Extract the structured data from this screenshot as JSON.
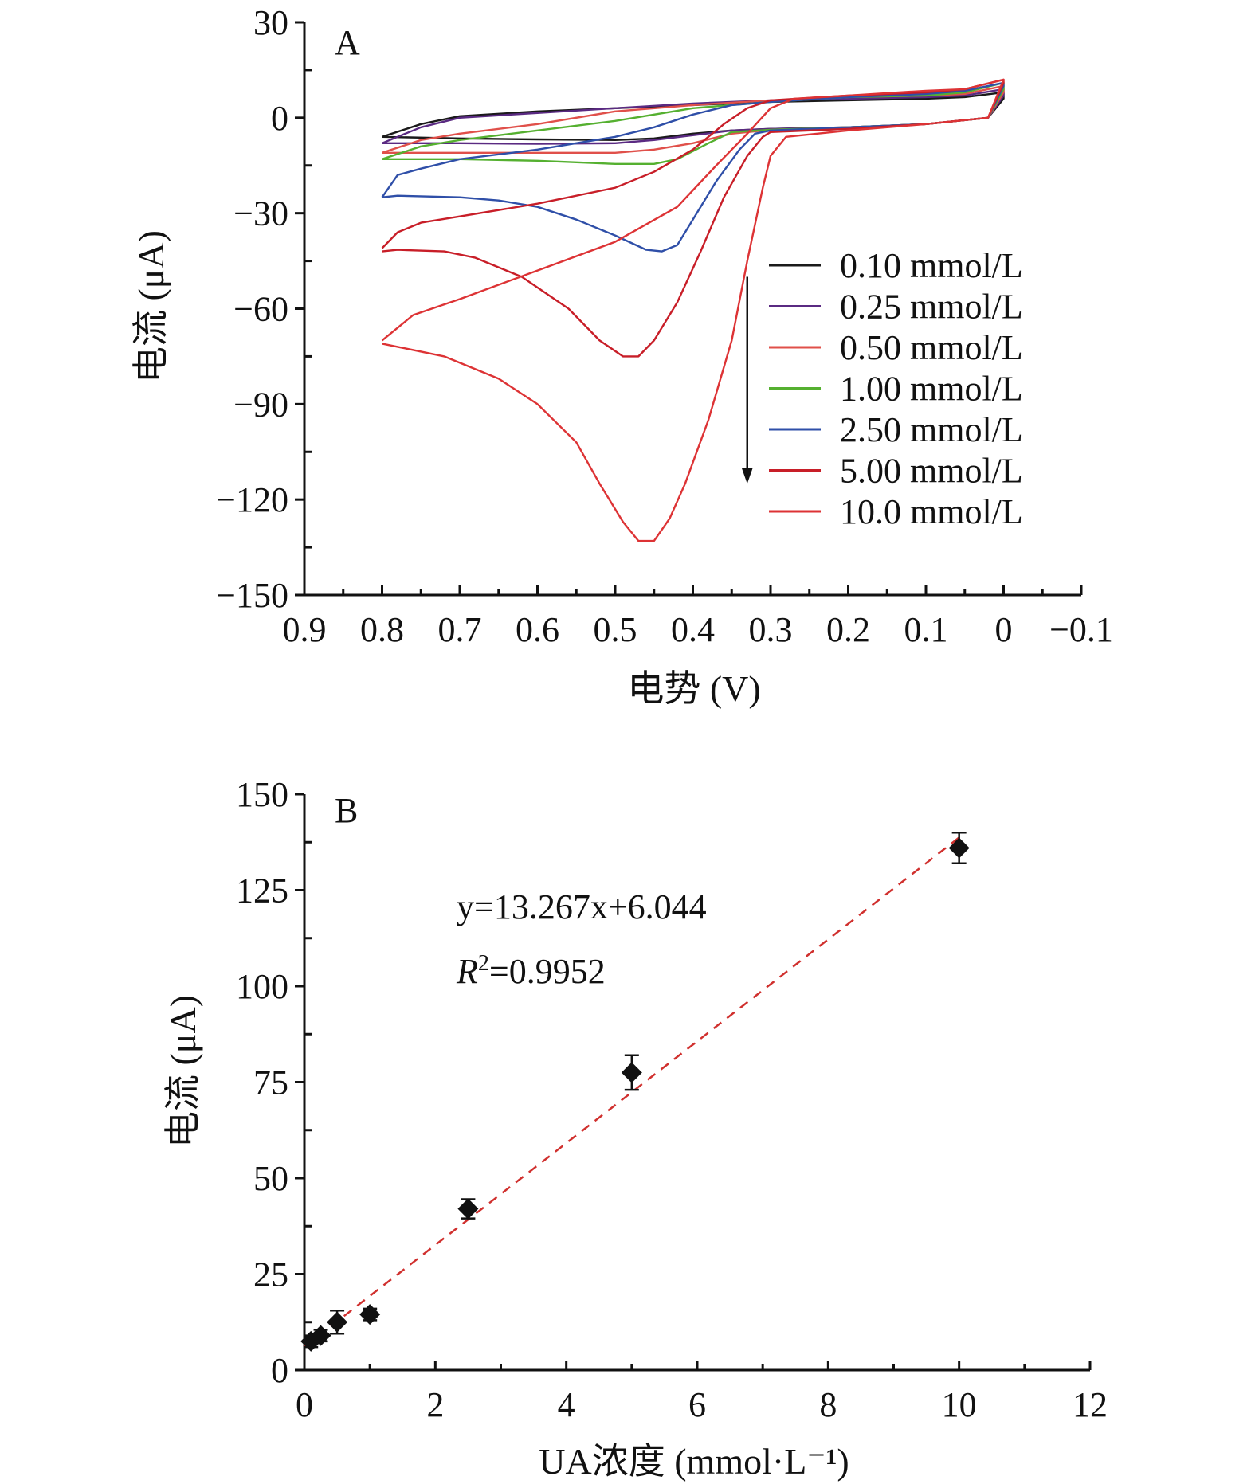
{
  "chart_data": [
    {
      "panel": "A",
      "type": "line",
      "xlabel": "电势 (V)",
      "ylabel": "电流 (μA)",
      "xlim": [
        0.9,
        -0.1
      ],
      "ylim": [
        -150,
        30
      ],
      "xticks": [
        0.9,
        0.8,
        0.7,
        0.6,
        0.5,
        0.4,
        0.3,
        0.2,
        0.1,
        0,
        -0.1
      ],
      "xtick_labels": [
        "0.9",
        "0.8",
        "0.7",
        "0.6",
        "0.5",
        "0.4",
        "0.3",
        "0.2",
        "0.1",
        "0",
        "−0.1"
      ],
      "yticks": [
        30,
        0,
        -30,
        -60,
        -90,
        -120,
        -150
      ],
      "ytick_labels": [
        "30",
        "0",
        "−30",
        "−60",
        "−90",
        "−120",
        "−150"
      ],
      "arrow": {
        "x": 0.33,
        "y_from": -50,
        "y_to": -115
      },
      "series": [
        {
          "name": "0.10 mmol/L",
          "color": "#1a1a1a",
          "forward": [
            [
              0.8,
              -6
            ],
            [
              0.7,
              -6.5
            ],
            [
              0.6,
              -6.8
            ],
            [
              0.5,
              -7
            ],
            [
              0.45,
              -6.5
            ],
            [
              0.4,
              -5
            ],
            [
              0.35,
              -4
            ],
            [
              0.3,
              -3.5
            ],
            [
              0.2,
              -3
            ],
            [
              0.1,
              -2
            ],
            [
              0.02,
              0
            ],
            [
              0,
              6
            ]
          ],
          "reverse": [
            [
              0,
              8
            ],
            [
              0.05,
              6.5
            ],
            [
              0.1,
              6
            ],
            [
              0.2,
              5.5
            ],
            [
              0.3,
              5
            ],
            [
              0.4,
              4
            ],
            [
              0.5,
              3
            ],
            [
              0.6,
              2
            ],
            [
              0.7,
              0.5
            ],
            [
              0.75,
              -2
            ],
            [
              0.8,
              -6
            ]
          ]
        },
        {
          "name": "0.25 mmol/L",
          "color": "#5a2a82",
          "forward": [
            [
              0.8,
              -8
            ],
            [
              0.7,
              -8
            ],
            [
              0.6,
              -8.2
            ],
            [
              0.5,
              -8
            ],
            [
              0.45,
              -7
            ],
            [
              0.4,
              -5.5
            ],
            [
              0.35,
              -4
            ],
            [
              0.3,
              -3.5
            ],
            [
              0.2,
              -3
            ],
            [
              0.1,
              -2
            ],
            [
              0.02,
              0
            ],
            [
              0,
              7
            ]
          ],
          "reverse": [
            [
              0,
              9
            ],
            [
              0.05,
              7
            ],
            [
              0.1,
              6.5
            ],
            [
              0.2,
              6
            ],
            [
              0.3,
              5.5
            ],
            [
              0.4,
              4.5
            ],
            [
              0.5,
              3
            ],
            [
              0.6,
              1.5
            ],
            [
              0.7,
              0
            ],
            [
              0.75,
              -3
            ],
            [
              0.8,
              -8
            ]
          ]
        },
        {
          "name": "0.50 mmol/L",
          "color": "#e0504a",
          "forward": [
            [
              0.8,
              -11
            ],
            [
              0.7,
              -11
            ],
            [
              0.6,
              -11
            ],
            [
              0.5,
              -11
            ],
            [
              0.45,
              -10
            ],
            [
              0.4,
              -8
            ],
            [
              0.35,
              -5
            ],
            [
              0.3,
              -3.8
            ],
            [
              0.2,
              -3
            ],
            [
              0.1,
              -2
            ],
            [
              0.02,
              0
            ],
            [
              0,
              8
            ]
          ],
          "reverse": [
            [
              0,
              10
            ],
            [
              0.05,
              7.5
            ],
            [
              0.1,
              7
            ],
            [
              0.2,
              6.5
            ],
            [
              0.3,
              5.5
            ],
            [
              0.4,
              4
            ],
            [
              0.5,
              2
            ],
            [
              0.6,
              -2
            ],
            [
              0.7,
              -5
            ],
            [
              0.75,
              -7
            ],
            [
              0.8,
              -11
            ]
          ]
        },
        {
          "name": "1.00 mmol/L",
          "color": "#55b030",
          "forward": [
            [
              0.8,
              -13
            ],
            [
              0.7,
              -13
            ],
            [
              0.6,
              -13.5
            ],
            [
              0.5,
              -14.5
            ],
            [
              0.45,
              -14.5
            ],
            [
              0.42,
              -13
            ],
            [
              0.38,
              -8
            ],
            [
              0.35,
              -4.5
            ],
            [
              0.3,
              -3.8
            ],
            [
              0.2,
              -3
            ],
            [
              0.1,
              -2
            ],
            [
              0.02,
              0
            ],
            [
              0,
              9
            ]
          ],
          "reverse": [
            [
              0,
              11
            ],
            [
              0.05,
              8
            ],
            [
              0.1,
              7
            ],
            [
              0.2,
              6.5
            ],
            [
              0.3,
              5
            ],
            [
              0.4,
              3
            ],
            [
              0.5,
              -1
            ],
            [
              0.6,
              -4
            ],
            [
              0.7,
              -7
            ],
            [
              0.75,
              -9
            ],
            [
              0.8,
              -13
            ]
          ]
        },
        {
          "name": "2.50 mmol/L",
          "color": "#2f4fa8",
          "forward": [
            [
              0.8,
              -25
            ],
            [
              0.78,
              -24.5
            ],
            [
              0.7,
              -25
            ],
            [
              0.65,
              -26
            ],
            [
              0.6,
              -28
            ],
            [
              0.55,
              -32
            ],
            [
              0.5,
              -37
            ],
            [
              0.46,
              -41.5
            ],
            [
              0.44,
              -42
            ],
            [
              0.42,
              -40
            ],
            [
              0.4,
              -32
            ],
            [
              0.37,
              -20
            ],
            [
              0.34,
              -10
            ],
            [
              0.32,
              -5
            ],
            [
              0.3,
              -4
            ],
            [
              0.2,
              -3
            ],
            [
              0.1,
              -2
            ],
            [
              0.02,
              0
            ],
            [
              0,
              10
            ]
          ],
          "reverse": [
            [
              0,
              11
            ],
            [
              0.05,
              8.5
            ],
            [
              0.1,
              7.5
            ],
            [
              0.2,
              6.5
            ],
            [
              0.3,
              5
            ],
            [
              0.35,
              4
            ],
            [
              0.4,
              1
            ],
            [
              0.45,
              -3
            ],
            [
              0.5,
              -6
            ],
            [
              0.6,
              -10
            ],
            [
              0.7,
              -13
            ],
            [
              0.75,
              -16
            ],
            [
              0.78,
              -18
            ],
            [
              0.8,
              -25
            ]
          ]
        },
        {
          "name": "5.00 mmol/L",
          "color": "#c81e28",
          "forward": [
            [
              0.8,
              -42
            ],
            [
              0.78,
              -41.5
            ],
            [
              0.72,
              -42
            ],
            [
              0.68,
              -44
            ],
            [
              0.62,
              -50
            ],
            [
              0.56,
              -60
            ],
            [
              0.52,
              -70
            ],
            [
              0.49,
              -75
            ],
            [
              0.47,
              -75
            ],
            [
              0.45,
              -70
            ],
            [
              0.42,
              -58
            ],
            [
              0.39,
              -42
            ],
            [
              0.36,
              -25
            ],
            [
              0.33,
              -12
            ],
            [
              0.31,
              -6
            ],
            [
              0.3,
              -4.5
            ],
            [
              0.2,
              -3.5
            ],
            [
              0.1,
              -2
            ],
            [
              0.02,
              0
            ],
            [
              0,
              11
            ]
          ],
          "reverse": [
            [
              0,
              12
            ],
            [
              0.05,
              9
            ],
            [
              0.1,
              8
            ],
            [
              0.2,
              7
            ],
            [
              0.3,
              5.5
            ],
            [
              0.33,
              3
            ],
            [
              0.36,
              -2
            ],
            [
              0.4,
              -10
            ],
            [
              0.45,
              -17
            ],
            [
              0.5,
              -22
            ],
            [
              0.6,
              -27
            ],
            [
              0.7,
              -31
            ],
            [
              0.75,
              -33
            ],
            [
              0.78,
              -36
            ],
            [
              0.8,
              -41
            ]
          ]
        },
        {
          "name": "10.0 mmol/L",
          "color": "#dd3335",
          "forward": [
            [
              0.8,
              -71
            ],
            [
              0.78,
              -72
            ],
            [
              0.72,
              -75
            ],
            [
              0.65,
              -82
            ],
            [
              0.6,
              -90
            ],
            [
              0.55,
              -102
            ],
            [
              0.52,
              -115
            ],
            [
              0.49,
              -127
            ],
            [
              0.47,
              -133
            ],
            [
              0.45,
              -133
            ],
            [
              0.43,
              -126
            ],
            [
              0.41,
              -115
            ],
            [
              0.38,
              -95
            ],
            [
              0.35,
              -70
            ],
            [
              0.33,
              -45
            ],
            [
              0.31,
              -22
            ],
            [
              0.3,
              -12
            ],
            [
              0.28,
              -6
            ],
            [
              0.2,
              -4
            ],
            [
              0.1,
              -2
            ],
            [
              0.02,
              0
            ],
            [
              0,
              12
            ]
          ],
          "reverse": [
            [
              0,
              12
            ],
            [
              0.05,
              9
            ],
            [
              0.1,
              8.5
            ],
            [
              0.2,
              7
            ],
            [
              0.27,
              6
            ],
            [
              0.3,
              3
            ],
            [
              0.33,
              -5
            ],
            [
              0.37,
              -15
            ],
            [
              0.42,
              -28
            ],
            [
              0.5,
              -39
            ],
            [
              0.6,
              -48
            ],
            [
              0.7,
              -57
            ],
            [
              0.76,
              -62
            ],
            [
              0.8,
              -70
            ]
          ]
        }
      ]
    },
    {
      "panel": "B",
      "type": "scatter",
      "xlabel": "UA浓度 (mmol·L⁻¹)",
      "ylabel": "电流 (μA)",
      "xlim": [
        0,
        12
      ],
      "ylim": [
        0,
        150
      ],
      "xticks": [
        0,
        2,
        4,
        6,
        8,
        10,
        12
      ],
      "yticks": [
        0,
        25,
        50,
        75,
        100,
        125,
        150
      ],
      "points": [
        {
          "x": 0.1,
          "y": 7.5,
          "err": 1.5
        },
        {
          "x": 0.25,
          "y": 9.0,
          "err": 1.5
        },
        {
          "x": 0.5,
          "y": 12.5,
          "err": 3.0
        },
        {
          "x": 1.0,
          "y": 14.5,
          "err": 1.5
        },
        {
          "x": 2.5,
          "y": 42.0,
          "err": 2.5
        },
        {
          "x": 5.0,
          "y": 77.5,
          "err": 4.5
        },
        {
          "x": 10.0,
          "y": 136.0,
          "err": 4.0
        }
      ],
      "fit": {
        "slope": 13.267,
        "intercept": 6.044,
        "color": "#d0302e",
        "equation": "y=13.267x+6.044",
        "r2_label": "R",
        "r2_sup": "2",
        "r2_value": "=0.9952"
      }
    }
  ]
}
